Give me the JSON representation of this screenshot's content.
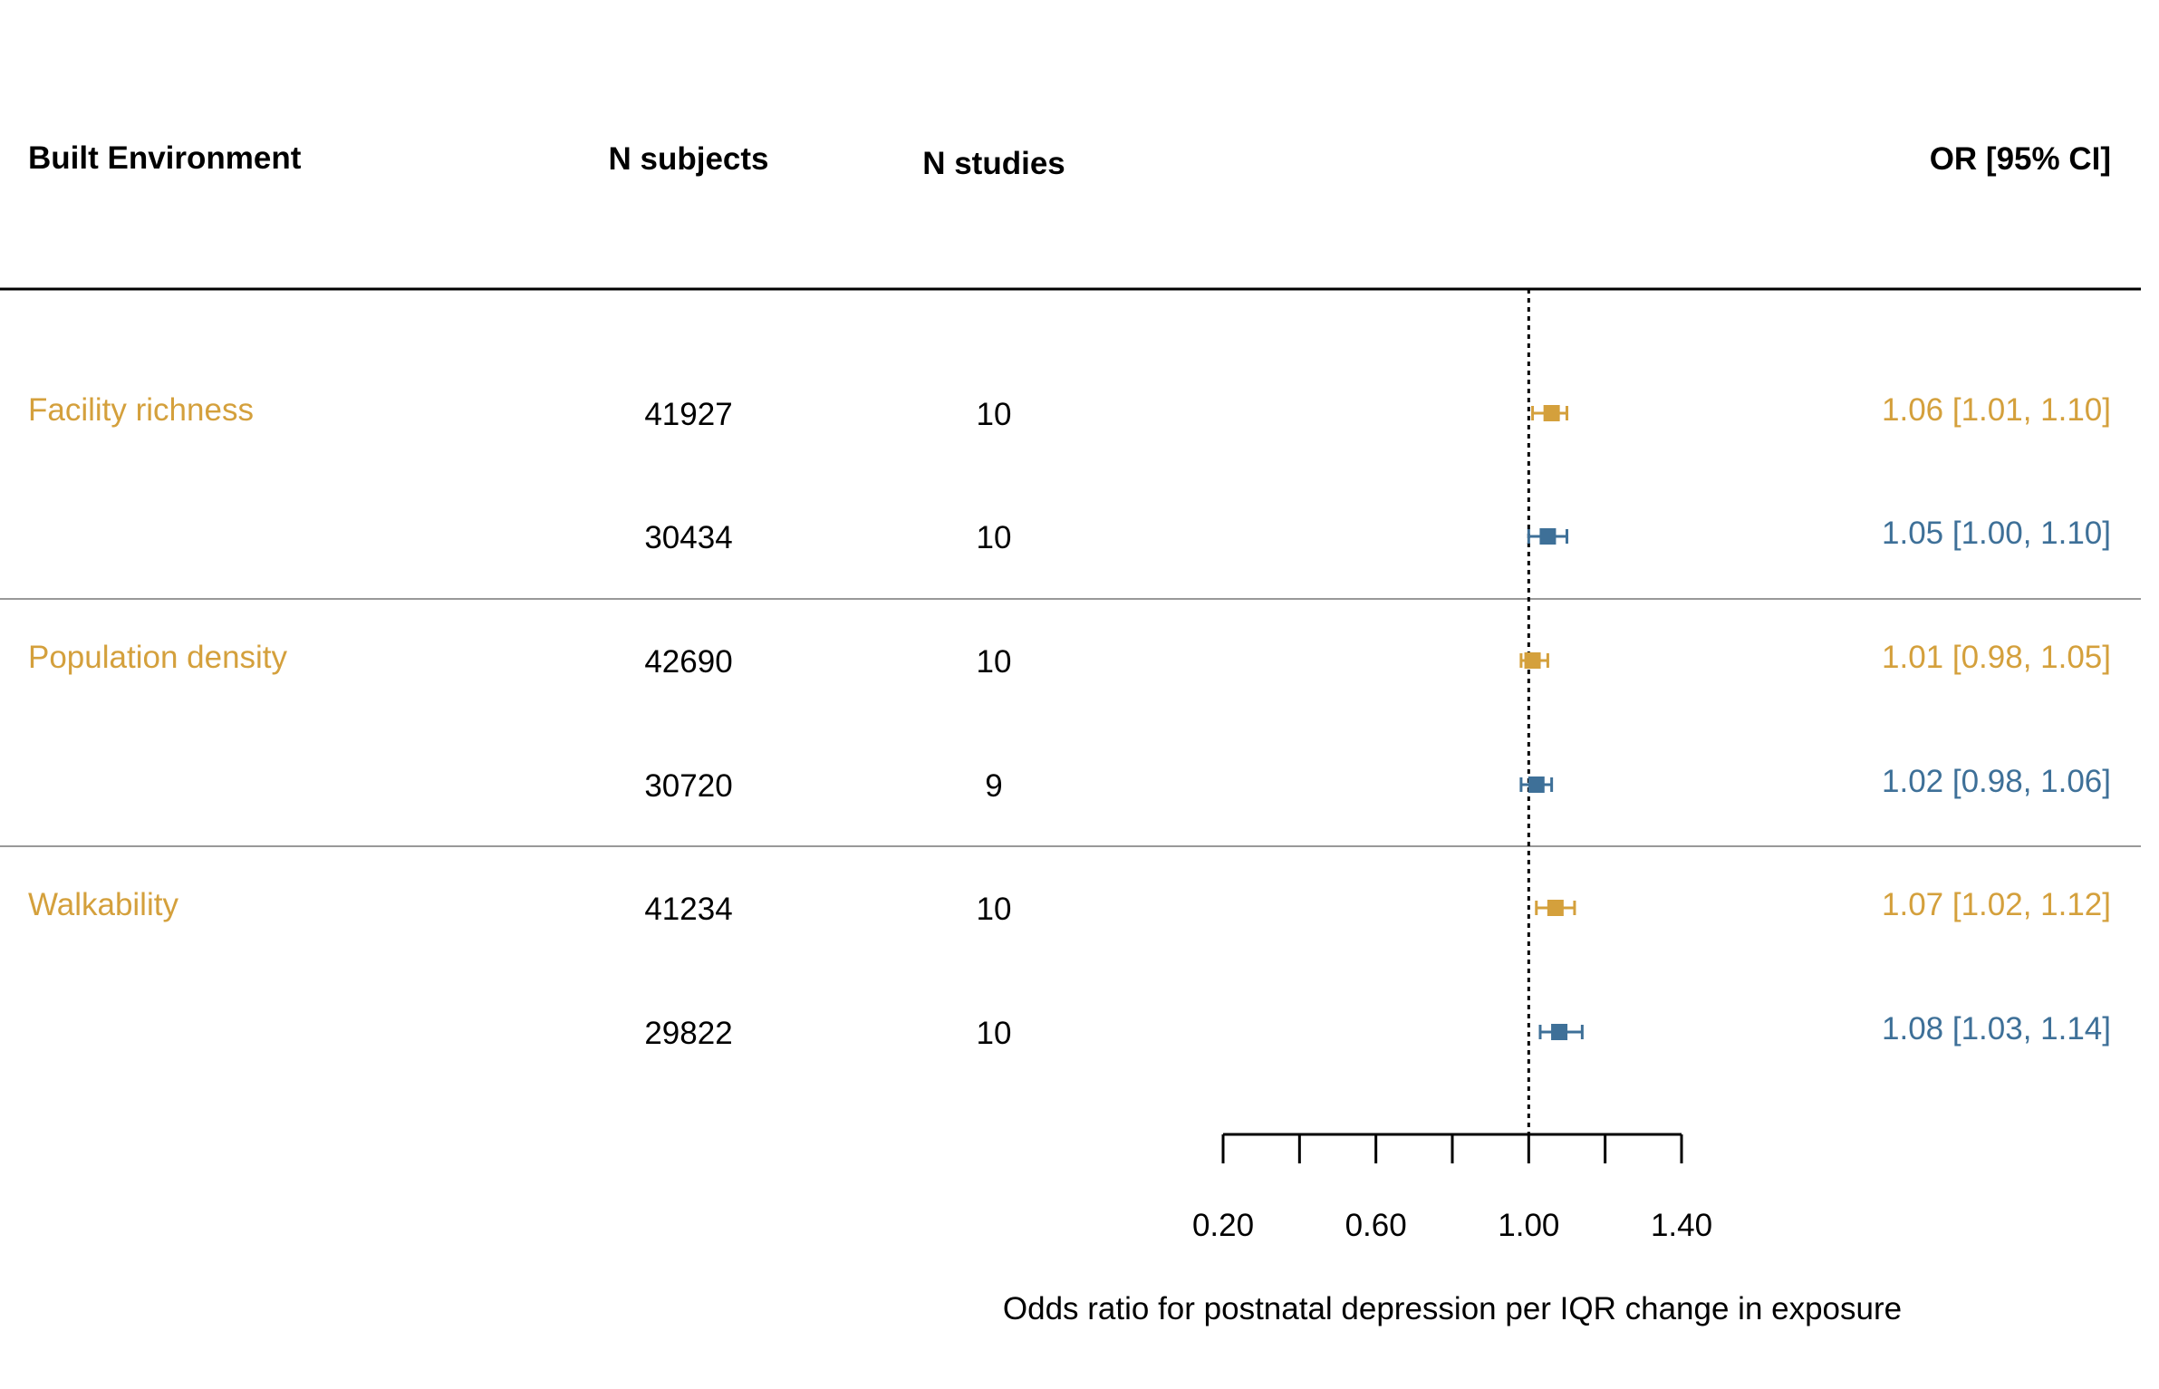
{
  "chart_data": {
    "type": "forest",
    "headers": {
      "exposure": "Built Environment",
      "n_subjects": "N subjects",
      "n_studies": "N studies",
      "or": "OR [95% CI]"
    },
    "xlabel": "Odds ratio for postnatal depression per IQR change in exposure",
    "xlim": [
      0.2,
      1.4
    ],
    "xticks": [
      0.2,
      0.4,
      0.6,
      0.8,
      1.0,
      1.2,
      1.4
    ],
    "xtick_labels": [
      {
        "value": 0.2,
        "label": "0.20"
      },
      {
        "value": 0.6,
        "label": "0.60"
      },
      {
        "value": 1.0,
        "label": "1.00"
      },
      {
        "value": 1.4,
        "label": "1.40"
      }
    ],
    "reference_line": 1.0,
    "colors": {
      "group_a": "#D4A03C",
      "group_b": "#3E7098",
      "text": "#000000",
      "separator": "#999999"
    },
    "groups": [
      {
        "label": "Facility richness",
        "rows": [
          {
            "n_subjects": "41927",
            "n_studies": "10",
            "or": 1.06,
            "lo": 1.01,
            "hi": 1.1,
            "or_text": "1.06 [1.01, 1.10]",
            "color": "#D4A03C"
          },
          {
            "n_subjects": "30434",
            "n_studies": "10",
            "or": 1.05,
            "lo": 1.0,
            "hi": 1.1,
            "or_text": "1.05 [1.00, 1.10]",
            "color": "#3E7098"
          }
        ]
      },
      {
        "label": "Population density",
        "rows": [
          {
            "n_subjects": "42690",
            "n_studies": "10",
            "or": 1.01,
            "lo": 0.98,
            "hi": 1.05,
            "or_text": "1.01 [0.98, 1.05]",
            "color": "#D4A03C"
          },
          {
            "n_subjects": "30720",
            "n_studies": "9",
            "or": 1.02,
            "lo": 0.98,
            "hi": 1.06,
            "or_text": "1.02 [0.98, 1.06]",
            "color": "#3E7098"
          }
        ]
      },
      {
        "label": "Walkability",
        "rows": [
          {
            "n_subjects": "41234",
            "n_studies": "10",
            "or": 1.07,
            "lo": 1.02,
            "hi": 1.12,
            "or_text": "1.07 [1.02, 1.12]",
            "color": "#D4A03C"
          },
          {
            "n_subjects": "29822",
            "n_studies": "10",
            "or": 1.08,
            "lo": 1.03,
            "hi": 1.14,
            "or_text": "1.08 [1.03, 1.14]",
            "color": "#3E7098"
          }
        ]
      }
    ]
  }
}
